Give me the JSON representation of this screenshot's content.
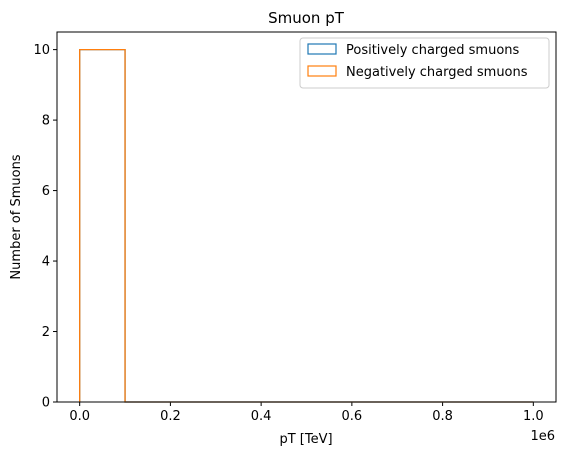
{
  "chart_data": {
    "type": "histogram",
    "title": "Smuon pT",
    "xlabel": "pT [TeV]",
    "ylabel": "Number of Smuons",
    "x_offset_text": "1e6",
    "xlim": [
      -50000,
      1050000
    ],
    "ylim": [
      0,
      10.5
    ],
    "xticks": [
      0,
      0.2,
      0.4,
      0.6,
      0.8,
      1.0
    ],
    "xtick_labels": [
      "0.0",
      "0.2",
      "0.4",
      "0.6",
      "0.8",
      "1.0"
    ],
    "yticks": [
      0,
      2,
      4,
      6,
      8,
      10
    ],
    "ytick_labels": [
      "0",
      "2",
      "4",
      "6",
      "8",
      "10"
    ],
    "bin_edges": [
      0,
      100000,
      200000,
      300000,
      400000,
      500000,
      600000,
      700000,
      800000,
      900000,
      1000000
    ],
    "histtype": "step",
    "legend_location": "top-right",
    "grid": false,
    "series": [
      {
        "name": "Positively charged smuons",
        "color": "#1f77b4",
        "counts": [
          10,
          0,
          0,
          0,
          0,
          0,
          0,
          0,
          0,
          0
        ]
      },
      {
        "name": "Negatively charged smuons",
        "color": "#ff7f0e",
        "counts": [
          10,
          0,
          0,
          0,
          0,
          0,
          0,
          0,
          0,
          0
        ]
      }
    ]
  }
}
